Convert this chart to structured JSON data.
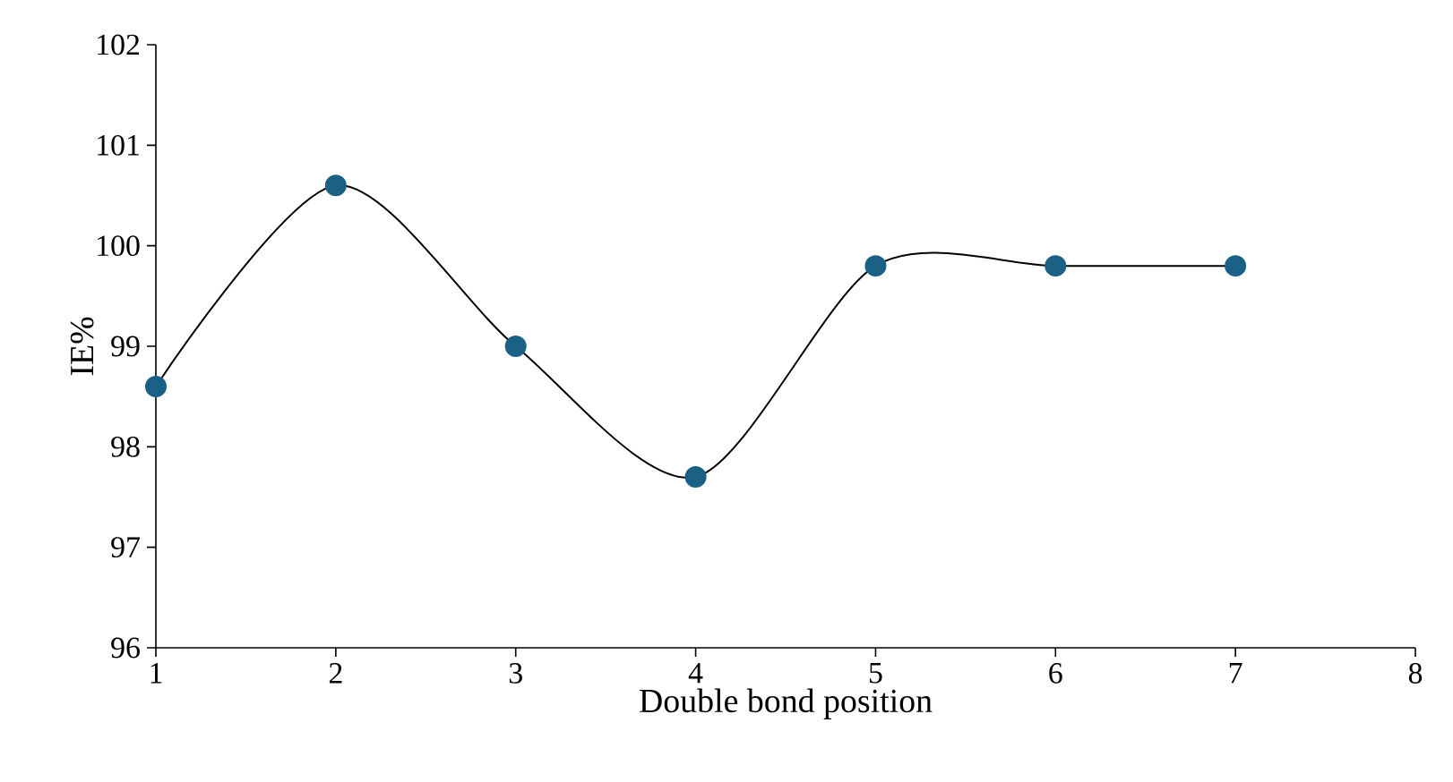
{
  "chart_data": {
    "type": "line",
    "xlabel": "Double bond position",
    "ylabel": "IE%",
    "x": [
      1,
      2,
      3,
      4,
      5,
      6,
      7
    ],
    "series": [
      {
        "color": "#1b6185",
        "values": [
          98.6,
          100.6,
          99.0,
          97.7,
          99.8,
          99.8,
          99.8
        ]
      }
    ],
    "xlim": [
      1,
      8
    ],
    "xticks": [
      1,
      2,
      3,
      4,
      5,
      6,
      7,
      8
    ],
    "ylim": [
      96,
      102
    ],
    "yticks": [
      96,
      97,
      98,
      99,
      100,
      101,
      102
    ],
    "grid": false,
    "marker": "circle",
    "line_style": "solid"
  }
}
